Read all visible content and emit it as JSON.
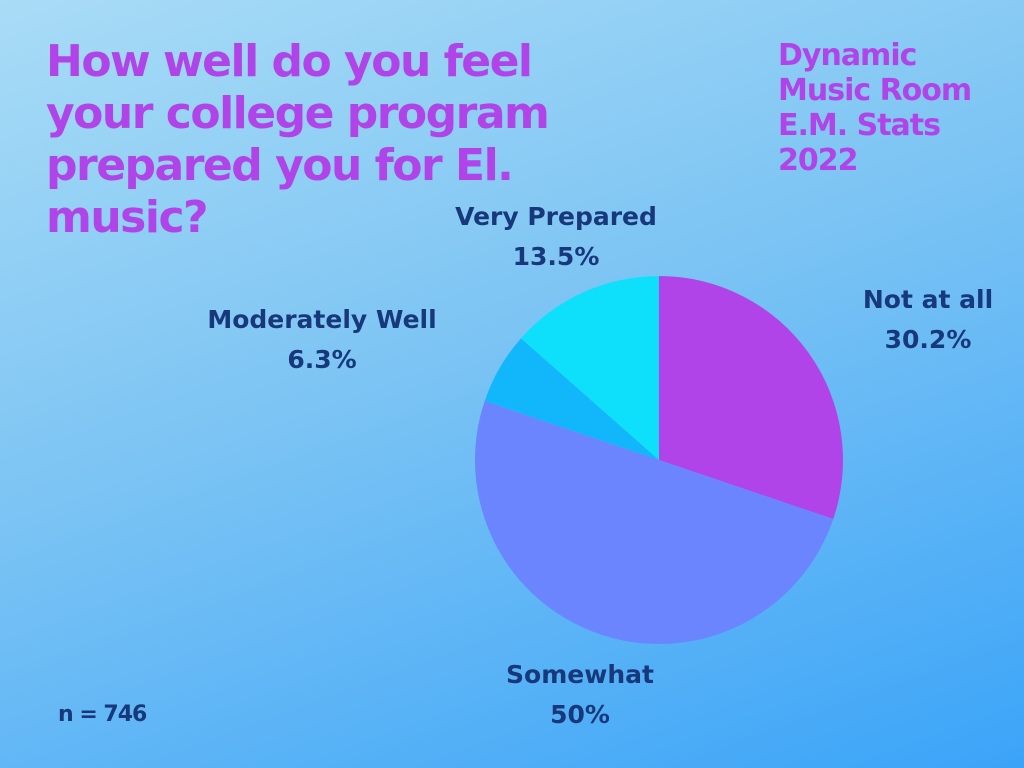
{
  "title": "How well do you feel your college program prepared you for El. music?",
  "brand": {
    "lines": [
      "Dynamic",
      "Music Room",
      "E.M. Stats",
      "2022"
    ]
  },
  "sample_note": "n = 746",
  "chart_data": {
    "type": "pie",
    "title": "How well do you feel your college program prepared you for El. music?",
    "slices": [
      {
        "name": "Not at all",
        "value": 30.2,
        "value_label": "30.2%",
        "color": "#b044e8"
      },
      {
        "name": "Somewhat",
        "value": 50,
        "value_label": "50%",
        "color": "#6b85ff"
      },
      {
        "name": "Moderately Well",
        "value": 6.3,
        "value_label": "6.3%",
        "color": "#12b7fb"
      },
      {
        "name": "Very Prepared",
        "value": 13.5,
        "value_label": "13.5%",
        "color": "#0ee0fb"
      }
    ]
  }
}
